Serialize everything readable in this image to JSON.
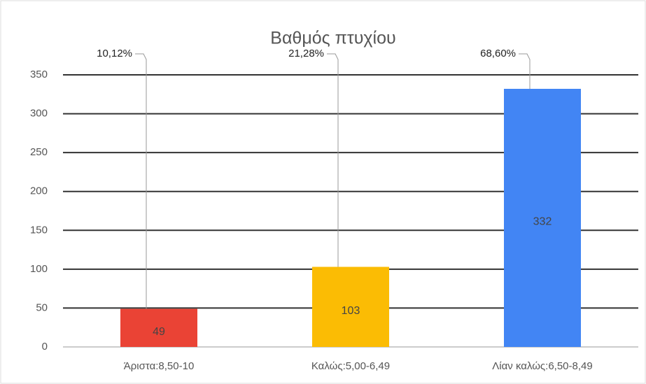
{
  "chart_data": {
    "type": "bar",
    "title": "Βαθμός πτυχίου",
    "categories": [
      "Άριστα:8,50-10",
      "Καλώς:5,00-6,49",
      "Λίαν καλώς:6,50-8,49"
    ],
    "values": [
      49,
      103,
      332
    ],
    "colors": [
      "#ea4335",
      "#fbbc04",
      "#4285f4"
    ],
    "percent_labels": [
      "10,12%",
      "21,28%",
      "68,60%"
    ],
    "ylim": [
      0,
      350
    ],
    "yticks": [
      0,
      50,
      100,
      150,
      200,
      250,
      300,
      350
    ],
    "grid": true
  }
}
